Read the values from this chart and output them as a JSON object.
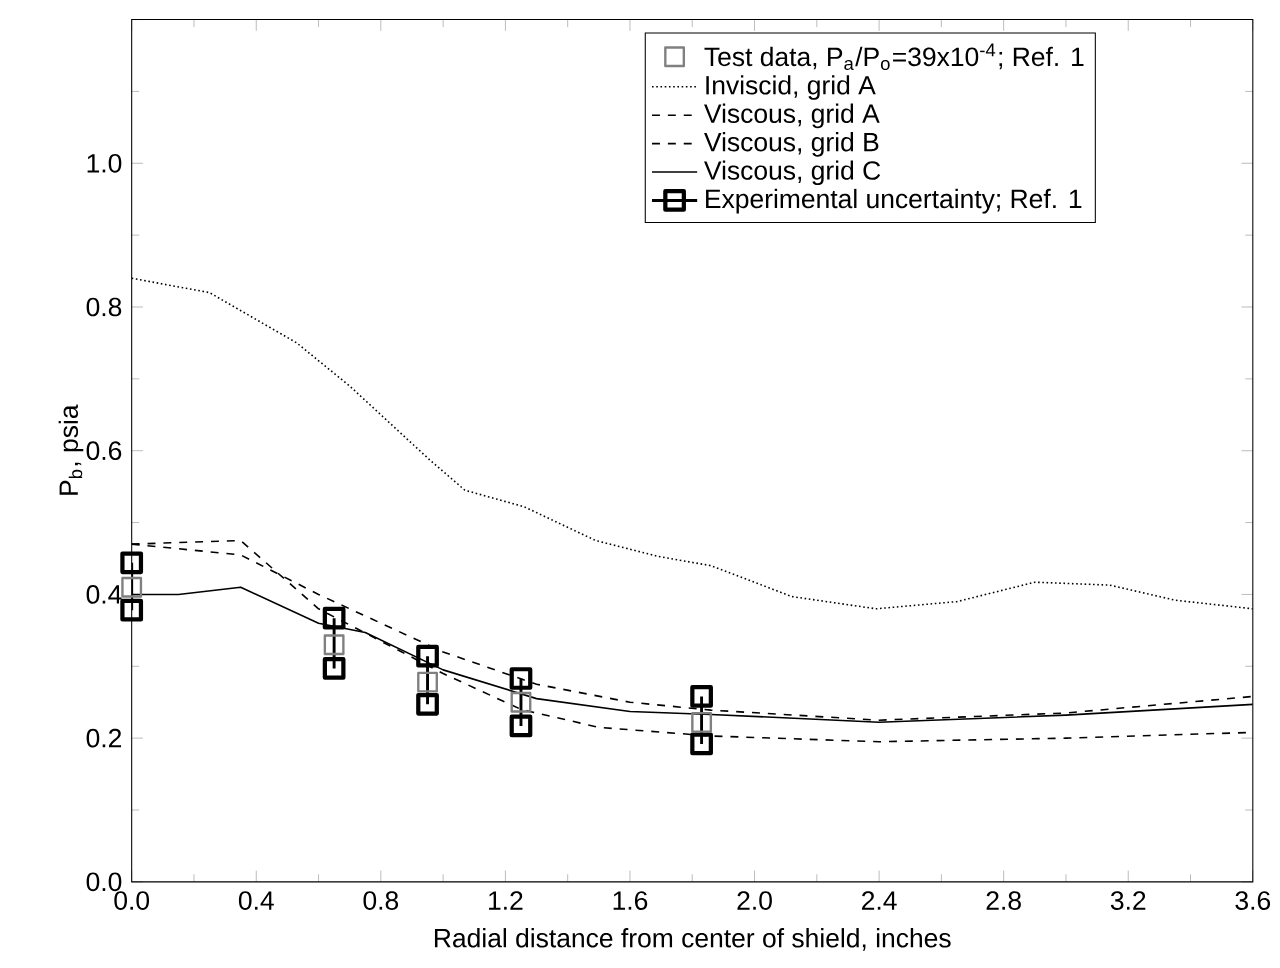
{
  "chart_data": {
    "type": "line",
    "xlabel": "Radial distance from center of shield, inches",
    "ylabel": "P$_{b}$, psia",
    "xlim": [
      0,
      3.6
    ],
    "ylim": [
      0,
      1.2
    ],
    "xticks": [
      {
        "value": 0,
        "label": "0.0"
      },
      {
        "value": 0.4,
        "label": "0.4"
      },
      {
        "value": 0.8,
        "label": "0.8"
      },
      {
        "value": 1.2,
        "label": "1.2"
      },
      {
        "value": 1.6,
        "label": "1.6"
      },
      {
        "value": 2.0,
        "label": "2.0"
      },
      {
        "value": 2.4,
        "label": "2.4"
      },
      {
        "value": 2.8,
        "label": "2.8"
      },
      {
        "value": 3.2,
        "label": "3.2"
      },
      {
        "value": 3.6,
        "label": "3.6"
      }
    ],
    "yticks": [
      {
        "value": 0,
        "label": "0.0"
      },
      {
        "value": 0.2,
        "label": "0.2"
      },
      {
        "value": 0.4,
        "label": "0.4"
      },
      {
        "value": 0.6,
        "label": "0.6"
      },
      {
        "value": 0.8,
        "label": "0.8"
      },
      {
        "value": 1.0,
        "label": "1.0"
      },
      {
        "value": 1.2,
        "label": null
      }
    ],
    "legend": "top right",
    "series": [
      {
        "name": "Test data, P$_{a}$/P$_{o}$=39x10$^{-4}$; Ref. 1",
        "type": "scatter",
        "marker": "square",
        "color": "#808080",
        "x": [
          0,
          0.65,
          0.95,
          1.25,
          1.83
        ],
        "values": [
          0.41,
          0.33,
          0.278,
          0.25,
          0.222
        ]
      },
      {
        "name": "Inviscid, grid A",
        "line_style": "dotted",
        "marker": "none",
        "color": "#000000",
        "x": [
          0,
          0.25,
          0.53,
          0.7,
          0.96,
          1.07,
          1.26,
          1.49,
          1.69,
          1.86,
          2.12,
          2.39,
          2.65,
          2.9,
          3.14,
          3.35,
          3.6
        ],
        "values": [
          0.84,
          0.82,
          0.75,
          0.69,
          0.586,
          0.545,
          0.522,
          0.475,
          0.453,
          0.44,
          0.397,
          0.38,
          0.39,
          0.417,
          0.413,
          0.392,
          0.38
        ]
      },
      {
        "name": "Viscous, grid A",
        "line_style": "dashed",
        "marker": "none",
        "color": "#000000",
        "x": [
          0,
          0.35,
          0.6,
          1.0,
          1.3,
          1.6,
          1.86,
          2.4,
          3.0,
          3.6
        ],
        "values": [
          0.47,
          0.455,
          0.4,
          0.32,
          0.275,
          0.25,
          0.239,
          0.225,
          0.235,
          0.258
        ]
      },
      {
        "name": "Viscous, grid B",
        "line_style": "dashed",
        "marker": "none",
        "color": "#000000",
        "x": [
          0,
          0.35,
          0.6,
          1.0,
          1.25,
          1.5,
          1.86,
          2.4,
          3.0,
          3.6
        ],
        "values": [
          0.47,
          0.475,
          0.38,
          0.29,
          0.24,
          0.215,
          0.203,
          0.195,
          0.2,
          0.208
        ]
      },
      {
        "name": "Viscous, grid C",
        "line_style": "solid",
        "marker": "none",
        "color": "#000000",
        "x": [
          0,
          0.15,
          0.35,
          0.6,
          0.75,
          1.0,
          1.3,
          1.6,
          1.86,
          2.4,
          3.0,
          3.6
        ],
        "values": [
          0.4,
          0.4,
          0.41,
          0.36,
          0.347,
          0.295,
          0.255,
          0.237,
          0.233,
          0.222,
          0.232,
          0.247
        ]
      },
      {
        "name": "Experimental uncertainty; Ref. 1",
        "line_style": "solid",
        "marker": "square",
        "color": "#000000",
        "x": [
          0,
          0,
          null,
          0.65,
          0.65,
          null,
          0.95,
          0.95,
          null,
          1.25,
          1.25,
          null,
          1.83,
          1.83
        ],
        "values": [
          0.378,
          0.444,
          null,
          0.297,
          0.367,
          null,
          0.247,
          0.314,
          null,
          0.217,
          0.283,
          null,
          0.192,
          0.258
        ]
      }
    ]
  }
}
